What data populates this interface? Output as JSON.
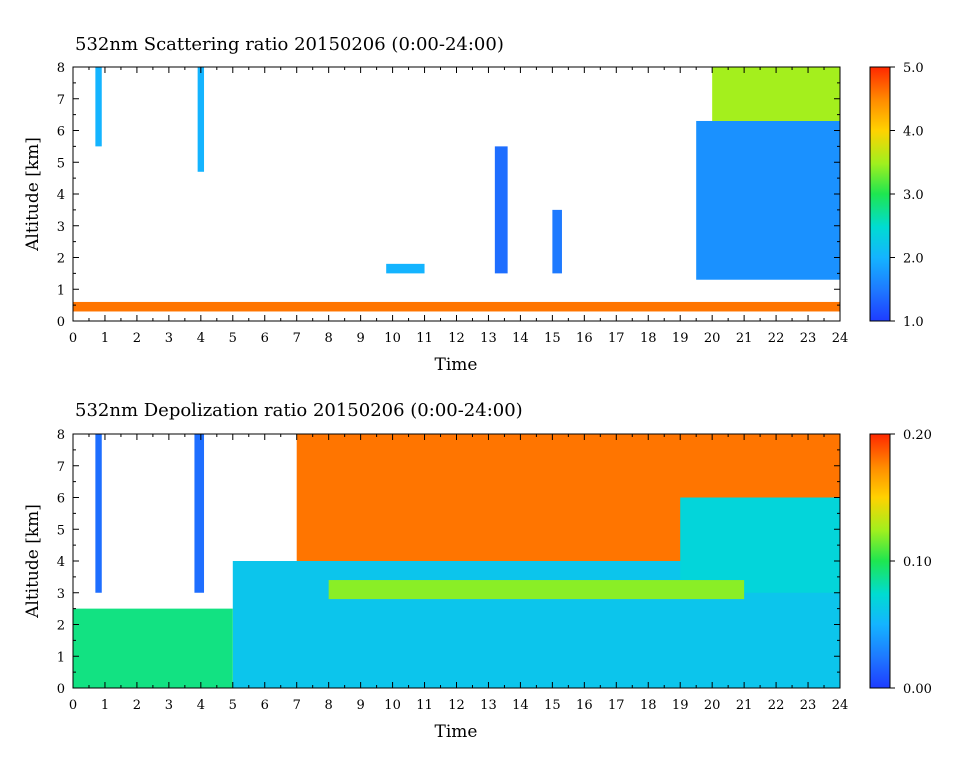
{
  "chart_data": [
    {
      "type": "heatmap",
      "title": "532nm Scattering ratio  20150206 (0:00-24:00)",
      "xlabel": "Time",
      "ylabel": "Altitude [km]",
      "xlim": [
        0,
        24
      ],
      "ylim": [
        0,
        8
      ],
      "x_ticks": [
        "0",
        "1",
        "2",
        "3",
        "4",
        "5",
        "6",
        "7",
        "8",
        "9",
        "10",
        "11",
        "12",
        "13",
        "14",
        "15",
        "16",
        "17",
        "18",
        "19",
        "20",
        "21",
        "22",
        "23",
        "24"
      ],
      "y_ticks": [
        "0",
        "1",
        "2",
        "3",
        "4",
        "5",
        "6",
        "7",
        "8"
      ],
      "colorbar": {
        "min": 1.0,
        "max": 5.0,
        "ticks": [
          "1.0",
          "2.0",
          "3.0",
          "4.0",
          "5.0"
        ]
      },
      "features": [
        {
          "t0": 0.0,
          "t1": 24.0,
          "a0": 0.3,
          "a1": 0.6,
          "value": 4.6
        },
        {
          "t0": 19.5,
          "t1": 24.0,
          "a0": 1.3,
          "a1": 6.3,
          "value": 1.7
        },
        {
          "t0": 13.2,
          "t1": 13.6,
          "a0": 1.5,
          "a1": 5.5,
          "value": 1.4
        },
        {
          "t0": 15.0,
          "t1": 15.3,
          "a0": 1.5,
          "a1": 3.5,
          "value": 1.5
        },
        {
          "t0": 0.7,
          "t1": 0.9,
          "a0": 5.5,
          "a1": 8.0,
          "value": 2.0
        },
        {
          "t0": 3.9,
          "t1": 4.1,
          "a0": 4.7,
          "a1": 8.0,
          "value": 2.0
        },
        {
          "t0": 9.8,
          "t1": 11.0,
          "a0": 1.5,
          "a1": 1.8,
          "value": 2.0
        },
        {
          "t0": 20.0,
          "t1": 24.0,
          "a0": 6.3,
          "a1": 8.0,
          "value": 3.5
        }
      ]
    },
    {
      "type": "heatmap",
      "title": "532nm Depolization ratio  20150206 (0:00-24:00)",
      "xlabel": "Time",
      "ylabel": "Altitude [km]",
      "xlim": [
        0,
        24
      ],
      "ylim": [
        0,
        8
      ],
      "x_ticks": [
        "0",
        "1",
        "2",
        "3",
        "4",
        "5",
        "6",
        "7",
        "8",
        "9",
        "10",
        "11",
        "12",
        "13",
        "14",
        "15",
        "16",
        "17",
        "18",
        "19",
        "20",
        "21",
        "22",
        "23",
        "24"
      ],
      "y_ticks": [
        "0",
        "1",
        "2",
        "3",
        "4",
        "5",
        "6",
        "7",
        "8"
      ],
      "colorbar": {
        "min": 0.0,
        "max": 0.2,
        "ticks": [
          "0.00",
          "0.10",
          "0.20"
        ]
      },
      "features": [
        {
          "t0": 5.0,
          "t1": 24.0,
          "a0": 0.0,
          "a1": 4.0,
          "value": 0.06
        },
        {
          "t0": 7.0,
          "t1": 24.0,
          "a0": 4.0,
          "a1": 8.0,
          "value": 0.18
        },
        {
          "t0": 19.0,
          "t1": 24.0,
          "a0": 3.0,
          "a1": 6.0,
          "value": 0.07
        },
        {
          "t0": 8.0,
          "t1": 21.0,
          "a0": 2.8,
          "a1": 3.4,
          "value": 0.12
        },
        {
          "t0": 0.0,
          "t1": 5.0,
          "a0": 0.0,
          "a1": 2.5,
          "value": 0.09
        },
        {
          "t0": 0.7,
          "t1": 0.9,
          "a0": 3.0,
          "a1": 8.0,
          "value": 0.02
        },
        {
          "t0": 3.8,
          "t1": 4.1,
          "a0": 3.0,
          "a1": 8.0,
          "value": 0.02
        }
      ]
    }
  ]
}
